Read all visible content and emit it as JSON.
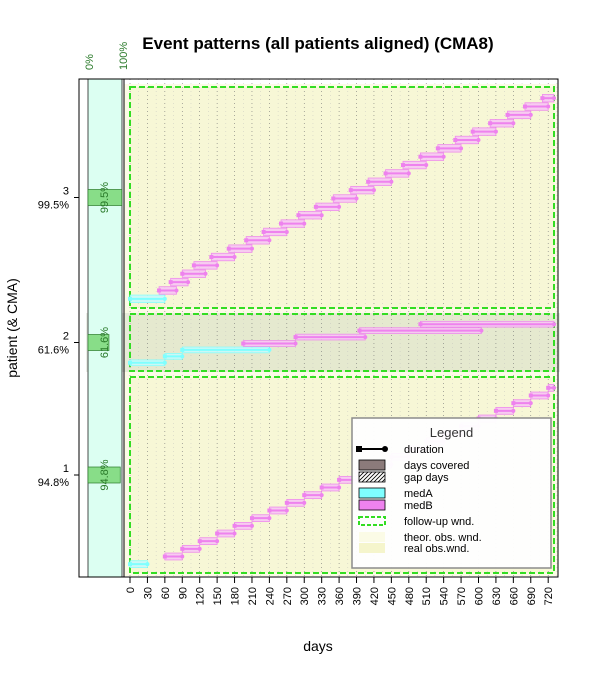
{
  "chart_data": {
    "type": "event_timeline",
    "title": "Event patterns (all patients aligned) (CMA8)",
    "xlabel": "days",
    "ylabel": "patient (& CMA)",
    "xlim": [
      0,
      730
    ],
    "x_ticks": [
      0,
      30,
      60,
      90,
      120,
      150,
      180,
      210,
      240,
      270,
      300,
      330,
      360,
      390,
      420,
      450,
      480,
      510,
      540,
      570,
      600,
      630,
      660,
      690,
      720
    ],
    "cma_axis_labels": [
      "0%",
      "100%"
    ],
    "patients": [
      {
        "id": "1",
        "cma_label": "94.8%",
        "cma": 0.948,
        "events": [
          {
            "med": "medA",
            "start": 0,
            "duration": 30
          },
          {
            "med": "medB",
            "start": 60,
            "duration": 30
          },
          {
            "med": "medB",
            "start": 90,
            "duration": 30
          },
          {
            "med": "medB",
            "start": 120,
            "duration": 30
          },
          {
            "med": "medB",
            "start": 150,
            "duration": 30
          },
          {
            "med": "medB",
            "start": 180,
            "duration": 30
          },
          {
            "med": "medB",
            "start": 210,
            "duration": 30
          },
          {
            "med": "medB",
            "start": 240,
            "duration": 30
          },
          {
            "med": "medB",
            "start": 270,
            "duration": 30
          },
          {
            "med": "medB",
            "start": 300,
            "duration": 30
          },
          {
            "med": "medB",
            "start": 330,
            "duration": 30
          },
          {
            "med": "medB",
            "start": 360,
            "duration": 30
          },
          {
            "med": "medB",
            "start": 390,
            "duration": 30
          },
          {
            "med": "medB",
            "start": 420,
            "duration": 30
          },
          {
            "med": "medB",
            "start": 450,
            "duration": 30
          },
          {
            "med": "medB",
            "start": 480,
            "duration": 30
          },
          {
            "med": "medB",
            "start": 510,
            "duration": 30
          },
          {
            "med": "medB",
            "start": 540,
            "duration": 30
          },
          {
            "med": "medB",
            "start": 570,
            "duration": 30
          },
          {
            "med": "medB",
            "start": 600,
            "duration": 30
          },
          {
            "med": "medB",
            "start": 630,
            "duration": 30
          },
          {
            "med": "medB",
            "start": 660,
            "duration": 30
          },
          {
            "med": "medB",
            "start": 690,
            "duration": 30
          },
          {
            "med": "medB",
            "start": 720,
            "duration": 30
          }
        ]
      },
      {
        "id": "2",
        "cma_label": "61.6%",
        "cma": 0.616,
        "events": [
          {
            "med": "medA",
            "start": 0,
            "duration": 60
          },
          {
            "med": "medA",
            "start": 60,
            "duration": 30
          },
          {
            "med": "medA",
            "start": 90,
            "duration": 150
          },
          {
            "med": "medB",
            "start": 195,
            "duration": 90
          },
          {
            "med": "medB",
            "start": 285,
            "duration": 120
          },
          {
            "med": "medB",
            "start": 395,
            "duration": 210
          },
          {
            "med": "medB",
            "start": 500,
            "duration": 230
          }
        ]
      },
      {
        "id": "3",
        "cma_label": "99.5%",
        "cma": 0.995,
        "events": [
          {
            "med": "medA",
            "start": 0,
            "duration": 60
          },
          {
            "med": "medB",
            "start": 50,
            "duration": 30
          },
          {
            "med": "medB",
            "start": 70,
            "duration": 30
          },
          {
            "med": "medB",
            "start": 90,
            "duration": 40
          },
          {
            "med": "medB",
            "start": 110,
            "duration": 40
          },
          {
            "med": "medB",
            "start": 140,
            "duration": 40
          },
          {
            "med": "medB",
            "start": 170,
            "duration": 40
          },
          {
            "med": "medB",
            "start": 200,
            "duration": 40
          },
          {
            "med": "medB",
            "start": 230,
            "duration": 40
          },
          {
            "med": "medB",
            "start": 260,
            "duration": 40
          },
          {
            "med": "medB",
            "start": 290,
            "duration": 40
          },
          {
            "med": "medB",
            "start": 320,
            "duration": 40
          },
          {
            "med": "medB",
            "start": 350,
            "duration": 40
          },
          {
            "med": "medB",
            "start": 380,
            "duration": 40
          },
          {
            "med": "medB",
            "start": 410,
            "duration": 40
          },
          {
            "med": "medB",
            "start": 440,
            "duration": 40
          },
          {
            "med": "medB",
            "start": 470,
            "duration": 40
          },
          {
            "med": "medB",
            "start": 500,
            "duration": 40
          },
          {
            "med": "medB",
            "start": 530,
            "duration": 40
          },
          {
            "med": "medB",
            "start": 560,
            "duration": 40
          },
          {
            "med": "medB",
            "start": 590,
            "duration": 40
          },
          {
            "med": "medB",
            "start": 620,
            "duration": 40
          },
          {
            "med": "medB",
            "start": 650,
            "duration": 40
          },
          {
            "med": "medB",
            "start": 680,
            "duration": 40
          },
          {
            "med": "medB",
            "start": 710,
            "duration": 30
          }
        ]
      }
    ],
    "follow_up_window": [
      0,
      730
    ],
    "legend": {
      "title": "Legend",
      "placement": "bottom-right",
      "items": [
        {
          "key": "duration",
          "label": "duration"
        },
        {
          "key": "covered",
          "label": "days covered"
        },
        {
          "key": "gap",
          "label": "gap days"
        },
        {
          "key": "medA",
          "label": "medA"
        },
        {
          "key": "medB",
          "label": "medB"
        },
        {
          "key": "fuw",
          "label": "follow-up wnd."
        },
        {
          "key": "theor",
          "label": "theor. obs. wnd."
        },
        {
          "key": "real",
          "label": "real obs.wnd."
        }
      ]
    },
    "colors": {
      "medA": "#7fffff",
      "medB": "#ee82ee",
      "medA_fill": "#c8fafa",
      "medB_fill": "#f7c8f3",
      "followup": "#33dd22",
      "theor_bg": "#fbfbe6",
      "real_bg": "#f5f5cc",
      "cma_bg": "#dcfff2",
      "cma_bar": "#88dd88",
      "cma_text": "#2a7a2a",
      "covered": "#8c7b7b"
    },
    "grid": true
  }
}
